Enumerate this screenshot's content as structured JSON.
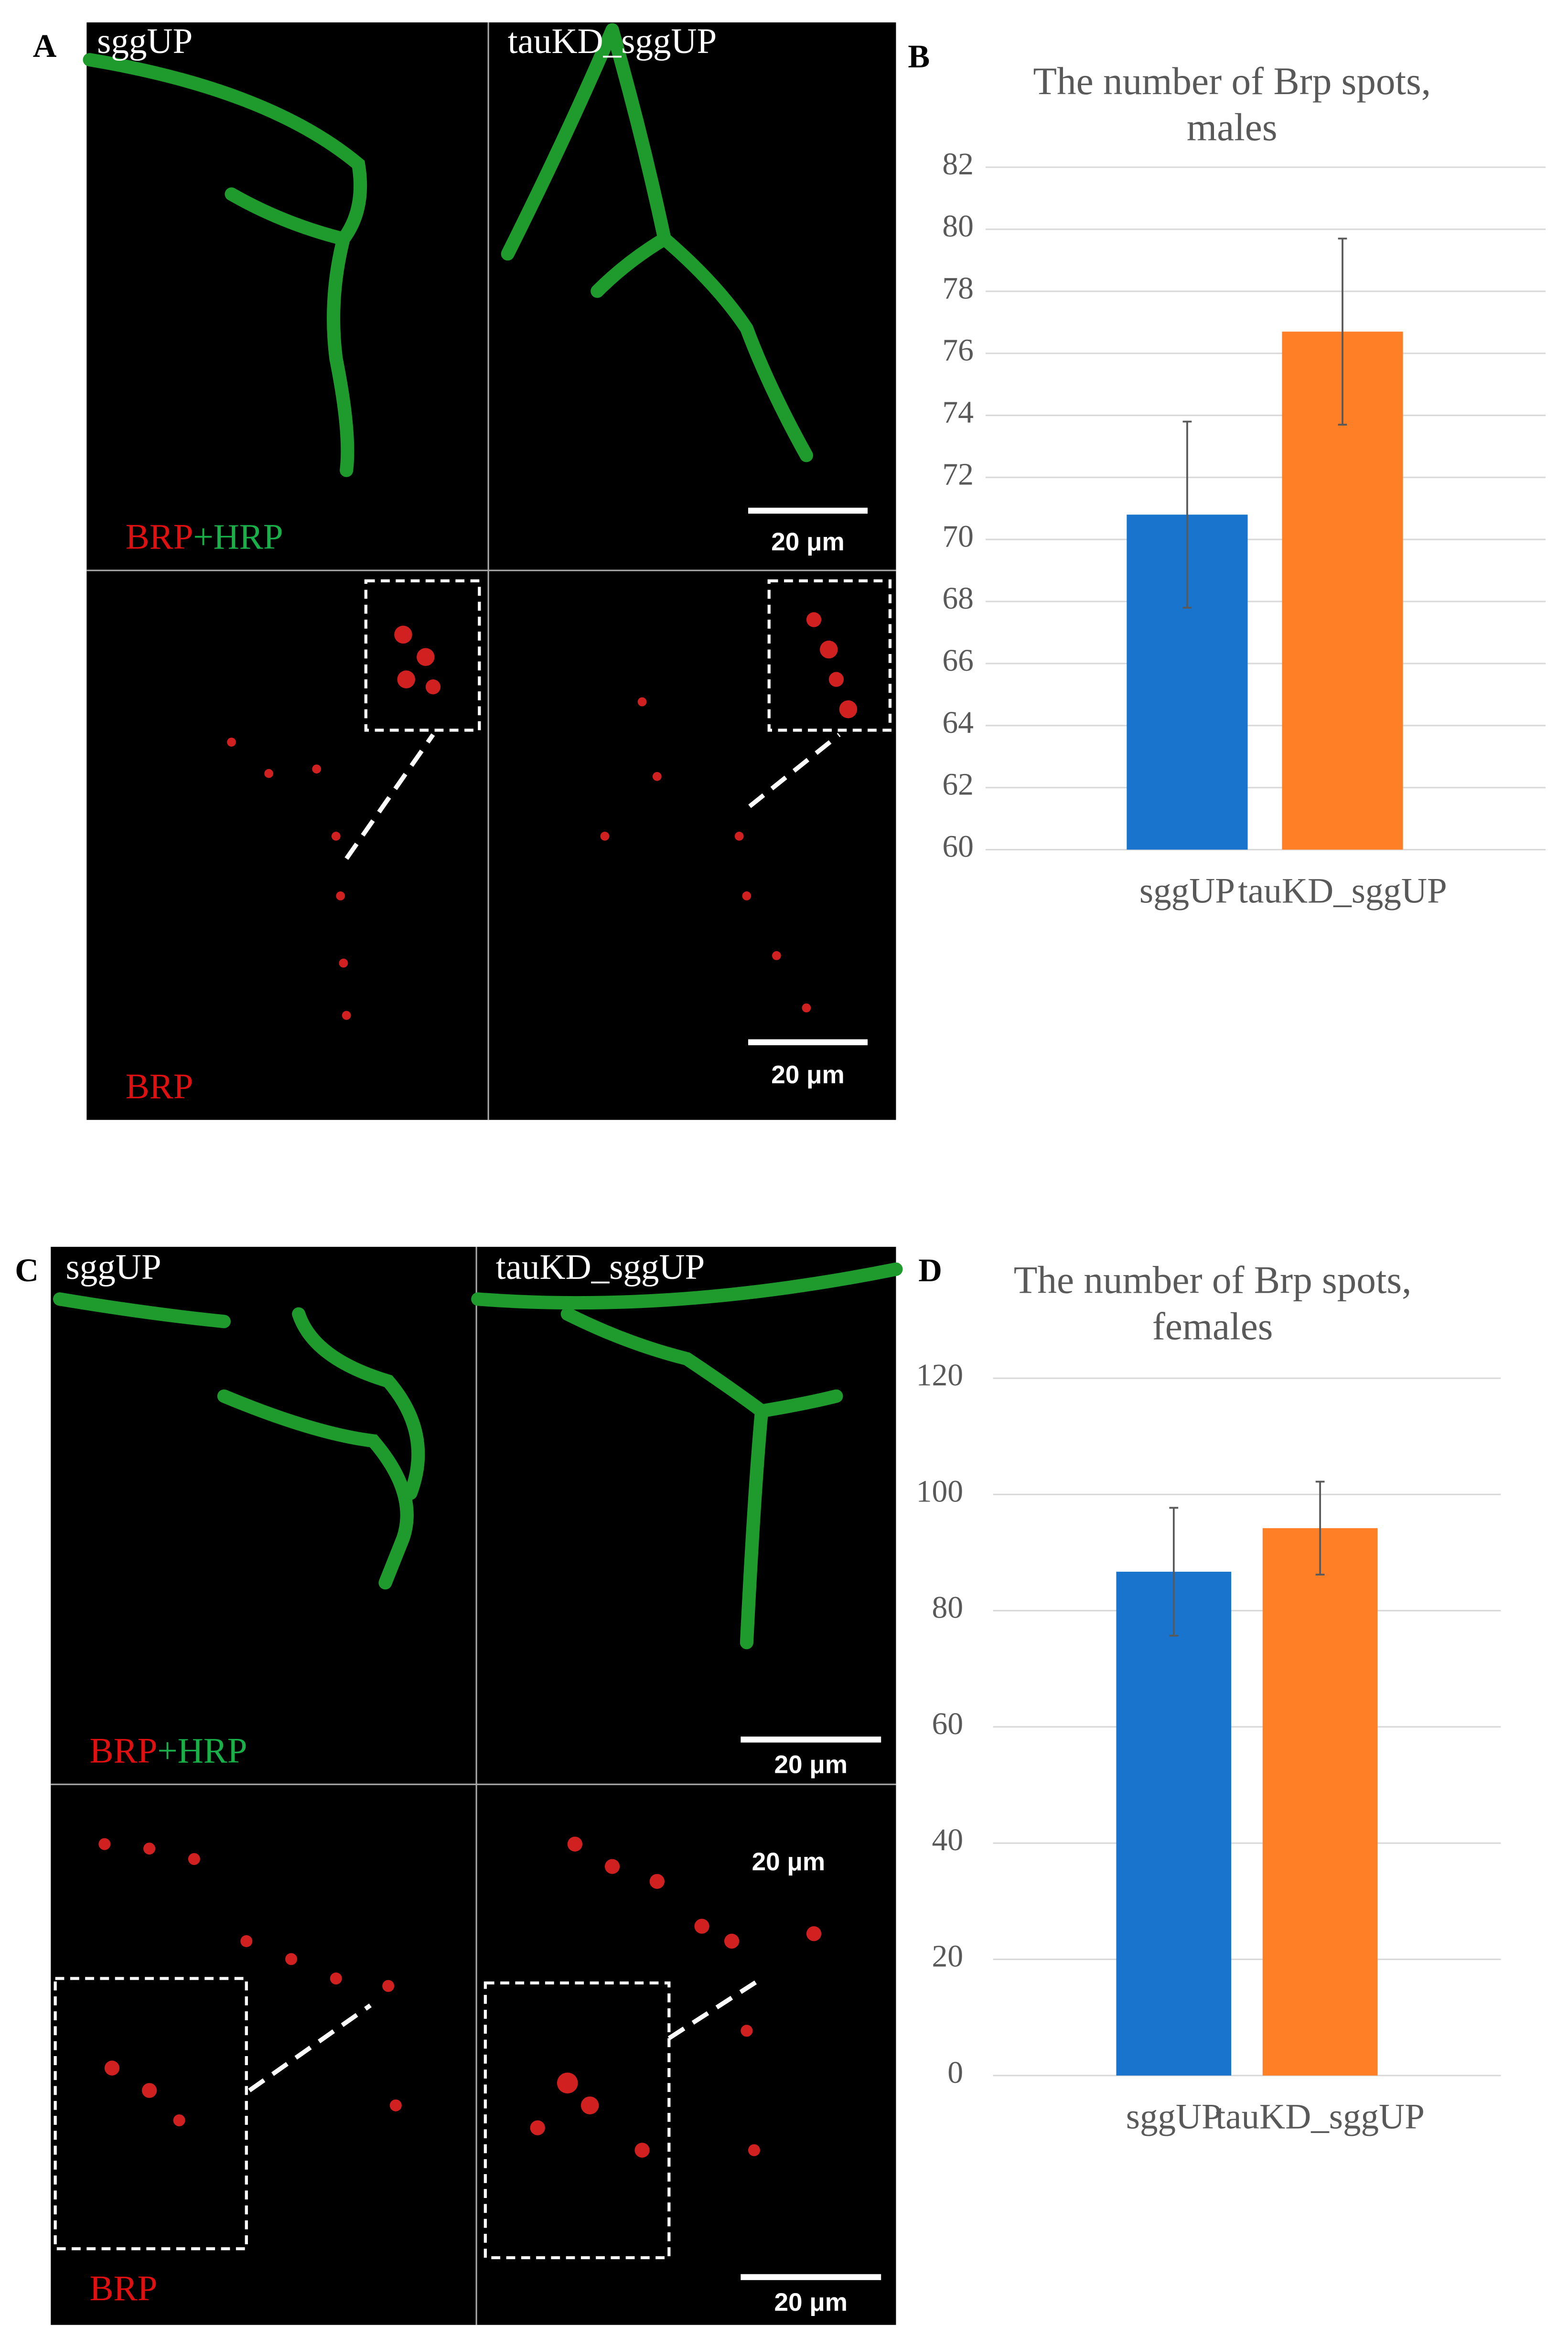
{
  "panel_labels": [
    "A",
    "B",
    "C",
    "D"
  ],
  "panel_a": {
    "labels": [
      "sggUP",
      "tauKD_sggUP"
    ],
    "merge_label": [
      "BRP",
      "+HRP"
    ],
    "brp_label": "BRP",
    "scale_bars": [
      "20 μm",
      "20 μm"
    ]
  },
  "panel_c": {
    "labels": [
      "sggUP",
      "tauKD_sggUP"
    ],
    "merge_label": [
      "BRP",
      "+HRP"
    ],
    "brp_label": "BRP",
    "scale_bars": [
      "20 μm",
      "20 μm",
      "20 μm"
    ]
  },
  "chart_data": [
    {
      "type": "bar",
      "title": [
        "The number of Brp spots,",
        "males"
      ],
      "categories": [
        "sggUP",
        "tauKD_sggUP"
      ],
      "values": [
        70.8,
        76.7
      ],
      "errors": [
        3.0,
        3.0
      ],
      "colors": [
        "#1874cd",
        "#ff7f27"
      ],
      "ylim": [
        60,
        82
      ],
      "yticks": [
        60,
        62,
        64,
        66,
        68,
        70,
        72,
        74,
        76,
        78,
        80,
        82
      ],
      "grid": true
    },
    {
      "type": "bar",
      "title": [
        "The number of Brp spots,",
        "females"
      ],
      "categories": [
        "sggUP",
        "tauKD_sggUP"
      ],
      "values": [
        86.7,
        94.2
      ],
      "errors": [
        11,
        8
      ],
      "colors": [
        "#1874cd",
        "#ff7f27"
      ],
      "ylim": [
        0,
        120
      ],
      "yticks": [
        0,
        20,
        40,
        60,
        80,
        100,
        120
      ],
      "grid": true
    }
  ]
}
